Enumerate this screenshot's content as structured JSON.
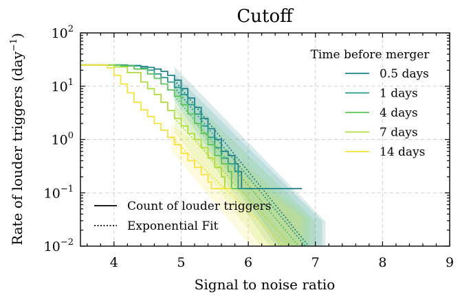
{
  "chart_data": {
    "type": "line",
    "title": "Cutoff",
    "xlabel": "Signal to noise ratio",
    "ylabel_main": "Rate of louder triggers (day",
    "ylabel_sup": "−1",
    "ylabel_close": ")",
    "xlim": [
      3.5,
      9
    ],
    "ylim_log10": [
      -2,
      2
    ],
    "y_scale": "log",
    "grid": true,
    "x_ticks": [
      {
        "value": 4,
        "label": "4"
      },
      {
        "value": 5,
        "label": "5"
      },
      {
        "value": 6,
        "label": "6"
      },
      {
        "value": 7,
        "label": "7"
      },
      {
        "value": 8,
        "label": "8"
      },
      {
        "value": 9,
        "label": "9"
      }
    ],
    "y_ticks": [
      {
        "exp": 2,
        "base": "10",
        "sup": "2"
      },
      {
        "exp": 1,
        "base": "10",
        "sup": "1"
      },
      {
        "exp": 0,
        "base": "10",
        "sup": "0"
      },
      {
        "exp": -1,
        "base": "10",
        "sup": "−1"
      },
      {
        "exp": -2,
        "base": "10",
        "sup": "−2"
      }
    ],
    "series_legend_title": "Time before merger",
    "series_legend_placement": "upper-right",
    "style_legend_placement": "lower-left",
    "style_legend": [
      {
        "label": "Count of louder triggers",
        "dash": "solid"
      },
      {
        "label": "Exponential Fit",
        "dash": "dotted"
      }
    ],
    "series": [
      {
        "name": "0.5 days",
        "color": "#21808a",
        "step": [
          [
            3.5,
            25
          ],
          [
            4.0,
            25
          ],
          [
            4.2,
            24.5
          ],
          [
            4.4,
            23.5
          ],
          [
            4.5,
            22.5
          ],
          [
            4.6,
            21
          ],
          [
            4.7,
            19
          ],
          [
            4.8,
            16
          ],
          [
            4.9,
            13
          ],
          [
            5.0,
            9
          ],
          [
            5.1,
            6
          ],
          [
            5.2,
            4
          ],
          [
            5.3,
            2.5
          ],
          [
            5.4,
            1.6
          ],
          [
            5.5,
            1.0
          ],
          [
            5.6,
            0.6
          ],
          [
            5.7,
            0.5
          ],
          [
            5.8,
            0.35
          ],
          [
            5.85,
            0.25
          ],
          [
            5.9,
            0.12
          ],
          [
            6.8,
            0.12
          ]
        ],
        "fit_x_range": [
          4.9,
          6.9
        ]
      },
      {
        "name": "1 days",
        "color": "#2a9a8a",
        "step": [
          [
            3.5,
            25
          ],
          [
            4.0,
            25
          ],
          [
            4.2,
            24
          ],
          [
            4.4,
            22
          ],
          [
            4.5,
            20
          ],
          [
            4.6,
            17
          ],
          [
            4.7,
            14.5
          ],
          [
            4.8,
            12
          ],
          [
            4.9,
            9.5
          ],
          [
            5.0,
            7
          ],
          [
            5.1,
            4.5
          ],
          [
            5.2,
            3.0
          ],
          [
            5.3,
            1.8
          ],
          [
            5.4,
            1.1
          ],
          [
            5.5,
            0.7
          ],
          [
            5.6,
            0.45
          ],
          [
            5.7,
            0.35
          ],
          [
            5.8,
            0.25
          ],
          [
            5.85,
            0.12
          ],
          [
            5.95,
            0.12
          ]
        ],
        "fit_x_range": [
          4.9,
          6.85
        ]
      },
      {
        "name": "4 days",
        "color": "#5cc45a",
        "step": [
          [
            3.5,
            25
          ],
          [
            3.9,
            25
          ],
          [
            4.1,
            24
          ],
          [
            4.3,
            21
          ],
          [
            4.5,
            17
          ],
          [
            4.6,
            14
          ],
          [
            4.7,
            11
          ],
          [
            4.8,
            8.5
          ],
          [
            4.9,
            6.5
          ],
          [
            5.0,
            4.5
          ],
          [
            5.1,
            3.0
          ],
          [
            5.2,
            2.0
          ],
          [
            5.3,
            1.3
          ],
          [
            5.4,
            0.8
          ],
          [
            5.5,
            0.5
          ],
          [
            5.6,
            0.35
          ],
          [
            5.7,
            0.25
          ],
          [
            5.75,
            0.12
          ],
          [
            5.85,
            0.12
          ]
        ],
        "fit_x_range": [
          4.9,
          6.75
        ]
      },
      {
        "name": "7 days",
        "color": "#aedc3a",
        "step": [
          [
            3.5,
            25
          ],
          [
            3.8,
            25
          ],
          [
            4.0,
            23
          ],
          [
            4.2,
            18
          ],
          [
            4.4,
            12
          ],
          [
            4.5,
            9
          ],
          [
            4.6,
            7
          ],
          [
            4.7,
            5
          ],
          [
            4.8,
            3.5
          ],
          [
            4.9,
            2.5
          ],
          [
            5.0,
            1.8
          ],
          [
            5.1,
            1.3
          ],
          [
            5.2,
            1.0
          ],
          [
            5.3,
            0.7
          ],
          [
            5.4,
            0.45
          ],
          [
            5.5,
            0.3
          ],
          [
            5.6,
            0.2
          ],
          [
            5.65,
            0.12
          ],
          [
            5.75,
            0.12
          ]
        ],
        "fit_x_range": [
          4.9,
          6.65
        ]
      },
      {
        "name": "14 days",
        "color": "#f5e23a",
        "step": [
          [
            3.5,
            25
          ],
          [
            3.7,
            25
          ],
          [
            3.9,
            22
          ],
          [
            4.0,
            16
          ],
          [
            4.1,
            11
          ],
          [
            4.2,
            7.5
          ],
          [
            4.3,
            5
          ],
          [
            4.4,
            3.6
          ],
          [
            4.5,
            2.7
          ],
          [
            4.6,
            2.0
          ],
          [
            4.7,
            1.5
          ],
          [
            4.8,
            1.1
          ],
          [
            4.9,
            0.8
          ],
          [
            5.0,
            0.55
          ],
          [
            5.1,
            0.4
          ],
          [
            5.2,
            0.3
          ],
          [
            5.3,
            0.22
          ],
          [
            5.4,
            0.16
          ],
          [
            5.45,
            0.12
          ],
          [
            5.75,
            0.12
          ]
        ],
        "fit_x_range": [
          4.85,
          6.55
        ]
      }
    ]
  }
}
